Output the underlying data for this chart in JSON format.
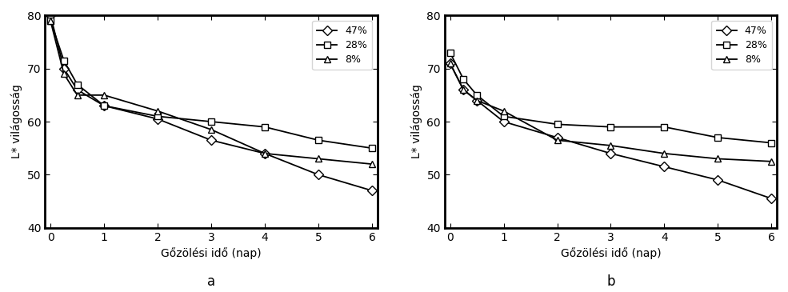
{
  "panel_a": {
    "title": "a",
    "xlabel": "Gőzölési idő (nap)",
    "ylabel": "L* világosság",
    "xlim": [
      -0.1,
      6.1
    ],
    "ylim": [
      40,
      80
    ],
    "series": [
      {
        "label": "47%",
        "marker": "D",
        "x": [
          0,
          0.25,
          0.5,
          1,
          2,
          3,
          4,
          5,
          6
        ],
        "y": [
          80,
          70,
          66,
          63,
          60.5,
          56.5,
          54,
          50,
          47
        ]
      },
      {
        "label": "28%",
        "marker": "s",
        "x": [
          0,
          0.25,
          0.5,
          1,
          2,
          3,
          4,
          5,
          6
        ],
        "y": [
          79,
          71.5,
          67,
          63,
          61,
          60,
          59,
          56.5,
          55
        ]
      },
      {
        "label": "8%",
        "marker": "^",
        "x": [
          0,
          0.25,
          0.5,
          1,
          2,
          3,
          4,
          5,
          6
        ],
        "y": [
          79,
          69,
          65,
          65,
          62,
          58.5,
          54,
          53,
          52
        ]
      }
    ]
  },
  "panel_b": {
    "title": "b",
    "xlabel": "Gőzölési idő (nap)",
    "ylabel": "L* világosság",
    "xlim": [
      -0.1,
      6.1
    ],
    "ylim": [
      40,
      80
    ],
    "series": [
      {
        "label": "47%",
        "marker": "D",
        "x": [
          0,
          0.25,
          0.5,
          1,
          2,
          3,
          4,
          5,
          6
        ],
        "y": [
          71,
          66,
          64,
          60,
          57,
          54,
          51.5,
          49,
          45.5
        ]
      },
      {
        "label": "28%",
        "marker": "s",
        "x": [
          0,
          0.25,
          0.5,
          1,
          2,
          3,
          4,
          5,
          6
        ],
        "y": [
          73,
          68,
          65,
          61,
          59.5,
          59,
          59,
          57,
          56
        ]
      },
      {
        "label": "8%",
        "marker": "^",
        "x": [
          0,
          0.25,
          0.5,
          1,
          2,
          3,
          4,
          5,
          6
        ],
        "y": [
          71,
          66,
          64,
          62,
          56.5,
          55.5,
          54,
          53,
          52.5
        ]
      }
    ]
  },
  "color": "black",
  "markersize": 6,
  "linewidth": 1.3,
  "spine_linewidth": 2.0,
  "xticks": [
    0,
    1,
    2,
    3,
    4,
    5,
    6
  ],
  "yticks": [
    40,
    50,
    60,
    70,
    80
  ]
}
